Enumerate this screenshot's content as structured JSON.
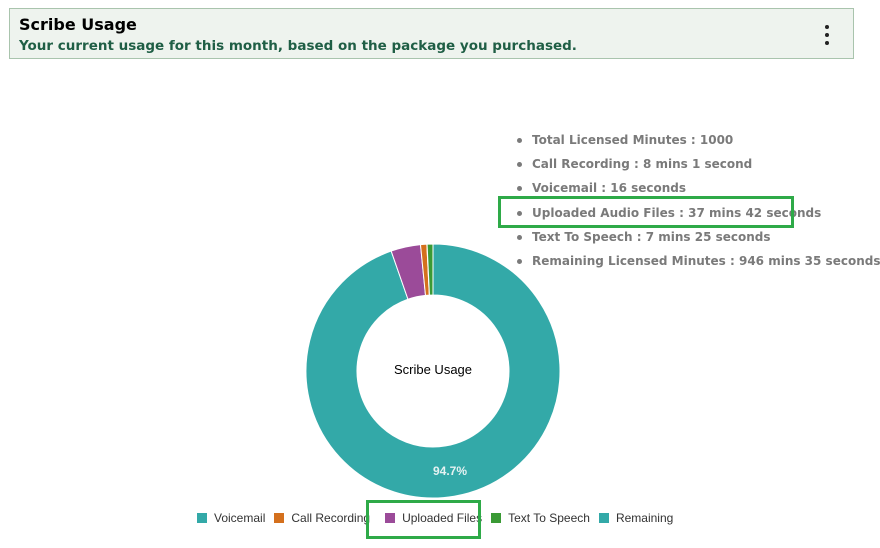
{
  "header": {
    "title": "Scribe Usage",
    "subtitle": "Your current usage for this month, based on the package you purchased."
  },
  "usage_summary": [
    "Total Licensed Minutes : 1000",
    "Call Recording : 8 mins 1 second",
    "Voicemail : 16 seconds",
    "Uploaded Audio Files : 37 mins 42 seconds",
    "Text To Speech : 7 mins 25 seconds",
    "Remaining Licensed Minutes : 946 mins 35 seconds"
  ],
  "chart_data": {
    "type": "pie",
    "subtype": "donut",
    "center_text": "Scribe Usage",
    "categories": [
      "Voicemail",
      "Call Recording",
      "Uploaded Files",
      "Text To Speech",
      "Remaining"
    ],
    "values": [
      0.27,
      8.02,
      37.7,
      7.42,
      946.58
    ],
    "units": "minutes",
    "colors": [
      "#33a9a8",
      "#d4701d",
      "#9b4b99",
      "#3a9a35",
      "#33a9a8"
    ],
    "data_labels": [
      "",
      "",
      "",
      "",
      "94.7%"
    ],
    "legend_position": "bottom"
  },
  "highlight_color": "#2eaa48"
}
